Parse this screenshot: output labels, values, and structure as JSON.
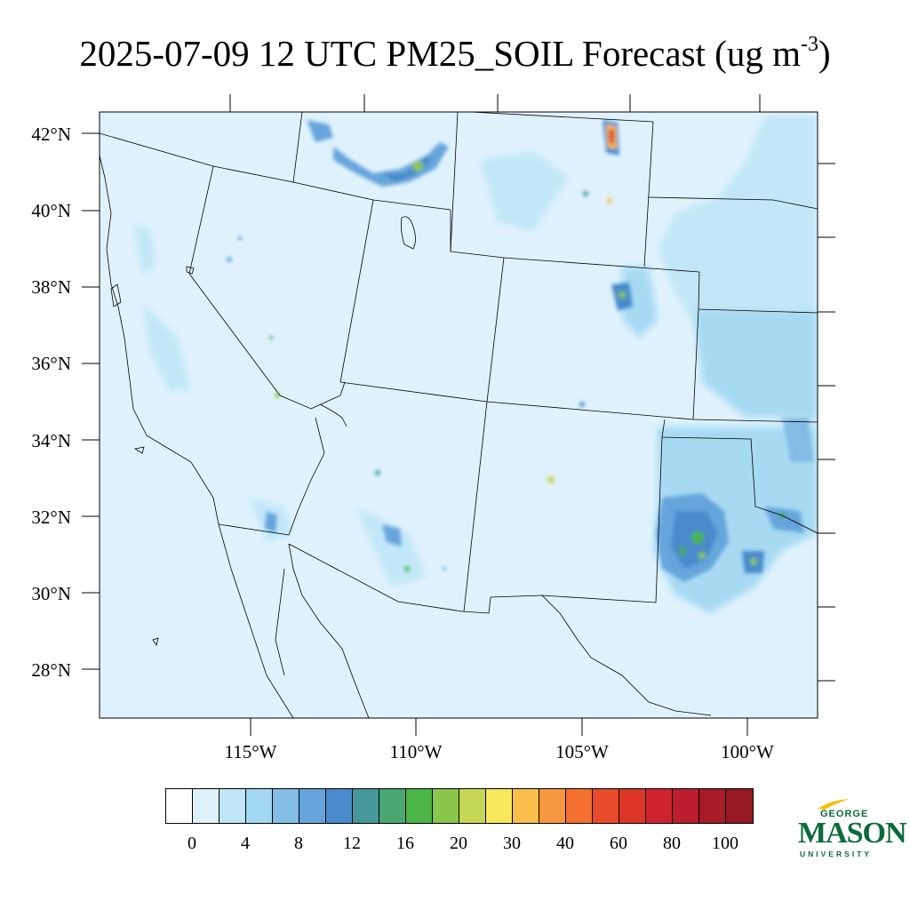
{
  "title": {
    "text": "2025-07-09 12 UTC PM25_SOIL Forecast (ug m",
    "superscript": "-3",
    "close": ")"
  },
  "map": {
    "variable": "PM25_SOIL",
    "units": "ug m-3",
    "latitude_labels": [
      "42°N",
      "40°N",
      "38°N",
      "36°N",
      "34°N",
      "32°N",
      "30°N",
      "28°N"
    ],
    "longitude_labels": [
      "115°W",
      "110°W",
      "105°W",
      "100°W"
    ],
    "base_fill_color": "#dff2fc",
    "border_color": "#000000"
  },
  "colorbar": {
    "colors": [
      "#ffffff",
      "#dff2fc",
      "#bfe6f8",
      "#a0d8f2",
      "#82bde6",
      "#66a5dc",
      "#4a8bcb",
      "#45999a",
      "#48a772",
      "#4bb546",
      "#89c64c",
      "#c4d856",
      "#f9e75b",
      "#f9bd4a",
      "#f7983e",
      "#f37030",
      "#e94c2a",
      "#dc3729",
      "#d02332",
      "#bb1e2c",
      "#a81b27",
      "#951823"
    ],
    "labels": [
      "0",
      "4",
      "8",
      "12",
      "16",
      "20",
      "30",
      "40",
      "60",
      "80",
      "100"
    ]
  },
  "logo": {
    "line1": "GEORGE",
    "line2": "MASON",
    "line3": "UNIVERSITY",
    "color": "#0b6b3a",
    "accent_color": "#f2c200"
  }
}
